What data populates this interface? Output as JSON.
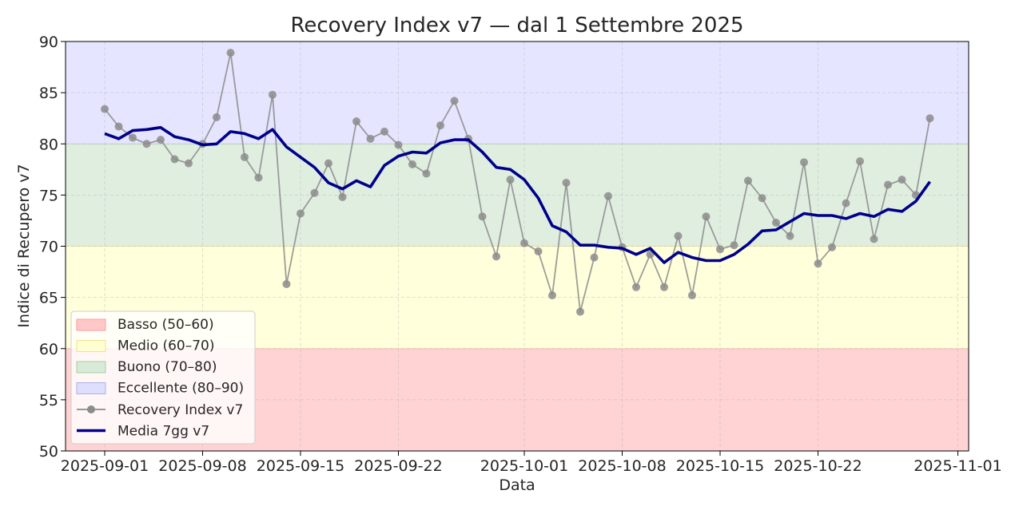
{
  "chart_data": {
    "type": "line",
    "title": "Recovery Index v7 — dal 1 Settembre 2025",
    "xlabel": "Data",
    "ylabel": "Indice di Recupero v7",
    "ylim": [
      50,
      90
    ],
    "xlim_dates": [
      "2025-08-29T04:48",
      "2025-11-01T18:30"
    ],
    "yticks": [
      50,
      55,
      60,
      65,
      70,
      75,
      80,
      85,
      90
    ],
    "xticks": [
      "2025-09-01",
      "2025-09-08",
      "2025-09-15",
      "2025-09-22",
      "2025-10-01",
      "2025-10-08",
      "2025-10-15",
      "2025-10-22",
      "2025-11-01"
    ],
    "grid": true,
    "legend_position": "lower-left",
    "bands": [
      {
        "name": "Basso (50–60)",
        "from": 50,
        "to": 60,
        "color": "#ffc8c8",
        "edge": "#ff9a9a"
      },
      {
        "name": "Medio (60–70)",
        "from": 60,
        "to": 70,
        "color": "#ffffd2",
        "edge": "#f0e08a"
      },
      {
        "name": "Buono (70–80)",
        "from": 70,
        "to": 80,
        "color": "#d8ead8",
        "edge": "#a8d0a0"
      },
      {
        "name": "Eccellente (80–90)",
        "from": 80,
        "to": 90,
        "color": "#dedeff",
        "edge": "#b0b0e8"
      }
    ],
    "start_date": "2025-09-01",
    "series": [
      {
        "name": "Recovery Index v7",
        "color": "#8c8c8c",
        "marker": "circle",
        "values": [
          83.4,
          81.7,
          80.6,
          80.0,
          80.4,
          78.5,
          78.1,
          80.0,
          82.6,
          88.9,
          78.7,
          76.7,
          84.8,
          66.3,
          73.2,
          75.2,
          78.1,
          74.8,
          82.2,
          80.5,
          81.2,
          79.9,
          78.0,
          77.1,
          81.8,
          84.2,
          80.5,
          72.9,
          69.0,
          76.5,
          70.3,
          69.5,
          65.2,
          76.2,
          63.6,
          68.9,
          74.9,
          69.9,
          66.0,
          69.2,
          66.0,
          71.0,
          65.2,
          72.9,
          69.7,
          70.1,
          76.4,
          74.7,
          72.3,
          71.0,
          78.2,
          68.3,
          69.9,
          74.2,
          78.3,
          70.7,
          76.0,
          76.5,
          75.0,
          82.5
        ]
      },
      {
        "name": "Media 7gg v7",
        "color": "#00008b",
        "marker": "none",
        "values": [
          81.0,
          80.5,
          81.3,
          81.4,
          81.6,
          80.7,
          80.4,
          79.9,
          80.0,
          81.2,
          81.0,
          80.5,
          81.4,
          79.7,
          78.7,
          77.7,
          76.2,
          75.6,
          76.4,
          75.8,
          77.9,
          78.8,
          79.2,
          79.1,
          80.1,
          80.4,
          80.4,
          79.2,
          77.7,
          77.5,
          76.5,
          74.7,
          72.0,
          71.4,
          70.1,
          70.1,
          69.9,
          69.8,
          69.2,
          69.8,
          68.4,
          69.4,
          68.9,
          68.6,
          68.6,
          69.2,
          70.2,
          71.5,
          71.6,
          72.4,
          73.2,
          73.0,
          73.0,
          72.7,
          73.2,
          72.9,
          73.6,
          73.4,
          74.4,
          76.3
        ]
      }
    ]
  }
}
